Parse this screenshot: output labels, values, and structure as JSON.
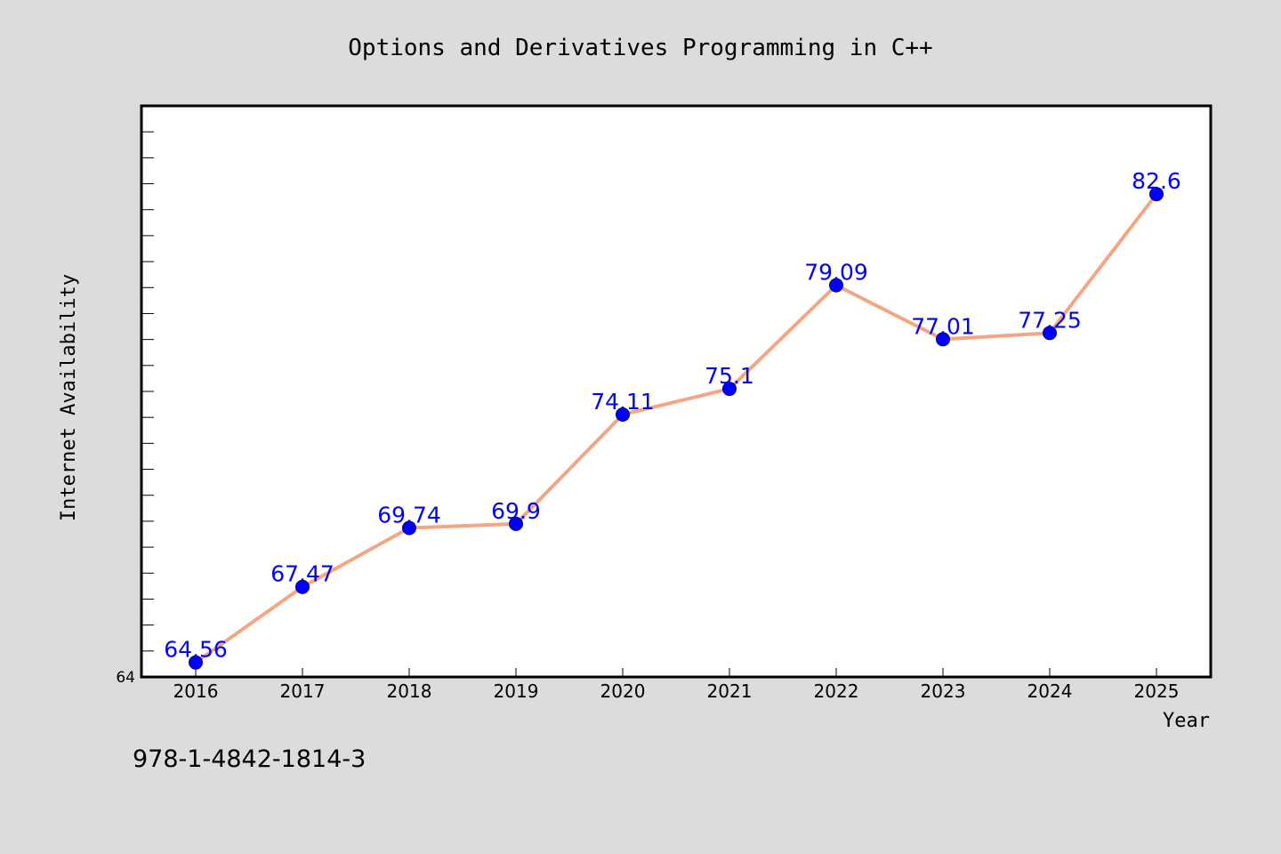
{
  "chart_data": {
    "type": "line",
    "title": "Options and Derivatives Programming in C++",
    "xlabel": "Year",
    "ylabel": "Internet Availability",
    "x": [
      "2016",
      "2017",
      "2018",
      "2019",
      "2020",
      "2021",
      "2022",
      "2023",
      "2024",
      "2025"
    ],
    "series": [
      {
        "values": [
          64.56,
          67.47,
          69.74,
          69.9,
          74.11,
          75.1,
          79.09,
          77.01,
          77.25,
          82.6
        ],
        "data_labels": [
          "64.56",
          "67.47",
          "69.74",
          "69.9",
          "74.11",
          "75.1",
          "79.09",
          "77.01",
          "77.25",
          "82.6"
        ]
      }
    ],
    "ylim": [
      64,
      86
    ],
    "yticks_labeled": [
      "64"
    ],
    "grid": false,
    "legend": "none",
    "annotation": "978-1-4842-1814-3",
    "colors": {
      "background": "#dcdcdc",
      "plot_background": "#ffffff",
      "line": "#f4a582",
      "marker": "#0000ff",
      "data_label": "#0000ff",
      "text": "#000000"
    }
  }
}
